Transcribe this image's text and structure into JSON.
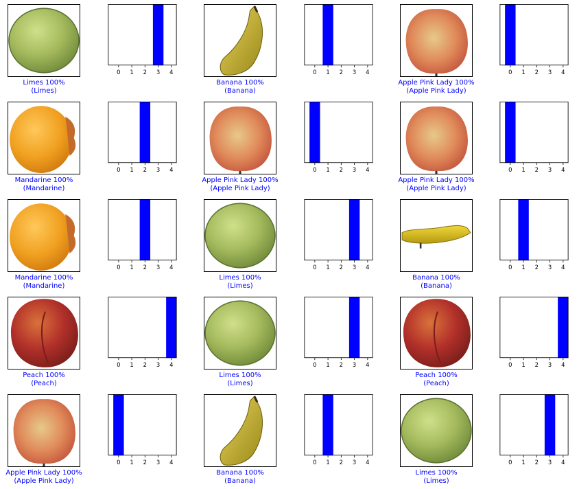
{
  "colors": {
    "bar_predicted": "#0000ff",
    "caption_correct": "#0000ff"
  },
  "items": [
    {
      "fruit": "limes",
      "pred_label": "Limes",
      "pct": "100%",
      "true_label": "(Limes)"
    },
    {
      "fruit": "banana",
      "pred_label": "Banana",
      "pct": "100%",
      "true_label": "(Banana)"
    },
    {
      "fruit": "apple",
      "pred_label": "Apple Pink Lady",
      "pct": "100%",
      "true_label": "(Apple Pink Lady)"
    },
    {
      "fruit": "mandarine",
      "pred_label": "Mandarine",
      "pct": "100%",
      "true_label": "(Mandarine)"
    },
    {
      "fruit": "apple",
      "pred_label": "Apple Pink Lady",
      "pct": "100%",
      "true_label": "(Apple Pink Lady)"
    },
    {
      "fruit": "apple",
      "pred_label": "Apple Pink Lady",
      "pct": "100%",
      "true_label": "(Apple Pink Lady)"
    },
    {
      "fruit": "mandarine",
      "pred_label": "Mandarine",
      "pct": "100%",
      "true_label": "(Mandarine)"
    },
    {
      "fruit": "limes",
      "pred_label": "Limes",
      "pct": "100%",
      "true_label": "(Limes)"
    },
    {
      "fruit": "banana-lying",
      "pred_label": "Banana",
      "pct": "100%",
      "true_label": "(Banana)"
    },
    {
      "fruit": "peach",
      "pred_label": "Peach",
      "pct": "100%",
      "true_label": "(Peach)"
    },
    {
      "fruit": "limes",
      "pred_label": "Limes",
      "pct": "100%",
      "true_label": "(Limes)"
    },
    {
      "fruit": "peach",
      "pred_label": "Peach",
      "pct": "100%",
      "true_label": "(Peach)"
    },
    {
      "fruit": "apple",
      "pred_label": "Apple Pink Lady",
      "pct": "100%",
      "true_label": "(Apple Pink Lady)"
    },
    {
      "fruit": "banana",
      "pred_label": "Banana",
      "pct": "100%",
      "true_label": "(Banana)"
    },
    {
      "fruit": "limes",
      "pred_label": "Limes",
      "pct": "100%",
      "true_label": "(Limes)"
    }
  ],
  "chart_data": {
    "type": "bar",
    "categories": [
      "0",
      "1",
      "2",
      "3",
      "4"
    ],
    "ylim": [
      0,
      1
    ],
    "charts": [
      {
        "values": [
          0,
          0,
          0,
          1,
          0
        ],
        "predicted": 3
      },
      {
        "values": [
          0,
          1,
          0,
          0,
          0
        ],
        "predicted": 1
      },
      {
        "values": [
          1,
          0,
          0,
          0,
          0
        ],
        "predicted": 0
      },
      {
        "values": [
          0,
          0,
          1,
          0,
          0
        ],
        "predicted": 2
      },
      {
        "values": [
          1,
          0,
          0,
          0,
          0
        ],
        "predicted": 0
      },
      {
        "values": [
          1,
          0,
          0,
          0,
          0
        ],
        "predicted": 0
      },
      {
        "values": [
          0,
          0,
          1,
          0,
          0
        ],
        "predicted": 2
      },
      {
        "values": [
          0,
          0,
          0,
          1,
          0
        ],
        "predicted": 3
      },
      {
        "values": [
          0,
          1,
          0,
          0,
          0
        ],
        "predicted": 1
      },
      {
        "values": [
          0,
          0,
          0,
          0,
          1
        ],
        "predicted": 4
      },
      {
        "values": [
          0,
          0,
          0,
          1,
          0
        ],
        "predicted": 3
      },
      {
        "values": [
          0,
          0,
          0,
          0,
          1
        ],
        "predicted": 4
      },
      {
        "values": [
          1,
          0,
          0,
          0,
          0
        ],
        "predicted": 0
      },
      {
        "values": [
          0,
          1,
          0,
          0,
          0
        ],
        "predicted": 1
      },
      {
        "values": [
          0,
          0,
          0,
          1,
          0
        ],
        "predicted": 3
      }
    ]
  }
}
